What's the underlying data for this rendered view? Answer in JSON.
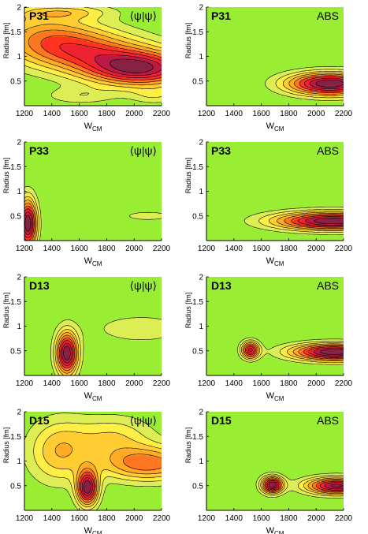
{
  "chart_data": [
    {
      "type": "contour",
      "panel_label": "P31",
      "quantity_label": "⟨ψ|ψ⟩",
      "xlabel": "W",
      "xlabel_sub": "CM",
      "ylabel": "Radius [fm]",
      "xlim": [
        1200,
        2200
      ],
      "ylim": [
        0,
        2
      ],
      "xticks": [
        1200,
        1400,
        1600,
        1800,
        2000,
        2200
      ],
      "yticks": [
        0.5,
        1,
        1.5,
        2
      ],
      "peaks": [
        {
          "x": 1350,
          "y": 1.45,
          "sx": 280,
          "sy": 0.35,
          "a": 0.45
        },
        {
          "x": 1650,
          "y": 1.1,
          "sx": 330,
          "sy": 0.3,
          "a": 0.6
        },
        {
          "x": 2050,
          "y": 0.75,
          "sx": 280,
          "sy": 0.25,
          "a": 1.0
        },
        {
          "x": 1600,
          "y": 0.2,
          "sx": 180,
          "sy": 0.12,
          "a": 0.2
        },
        {
          "x": 2150,
          "y": 0.2,
          "sx": 120,
          "sy": 0.12,
          "a": 0.18
        },
        {
          "x": 1480,
          "y": 1.9,
          "sx": 250,
          "sy": 0.1,
          "a": 0.3
        }
      ]
    },
    {
      "type": "contour",
      "panel_label": "P31",
      "quantity_label": "ABS",
      "xlabel": "W",
      "xlabel_sub": "CM",
      "ylabel": "Radius [fm]",
      "xlim": [
        1200,
        2200
      ],
      "ylim": [
        0,
        2
      ],
      "xticks": [
        1200,
        1400,
        1600,
        1800,
        2000,
        2200
      ],
      "yticks": [
        0.5,
        1,
        1.5,
        2
      ],
      "peaks": [
        {
          "x": 2100,
          "y": 0.45,
          "sx": 220,
          "sy": 0.16,
          "a": 1.0
        }
      ]
    },
    {
      "type": "contour",
      "panel_label": "P33",
      "quantity_label": "⟨ψ|ψ⟩",
      "xlabel": "W",
      "xlabel_sub": "CM",
      "ylabel": "Radius [fm]",
      "xlim": [
        1200,
        2200
      ],
      "ylim": [
        0,
        2
      ],
      "xticks": [
        1200,
        1400,
        1600,
        1800,
        2000,
        2200
      ],
      "yticks": [
        0.5,
        1,
        1.5,
        2
      ],
      "peaks": [
        {
          "x": 1225,
          "y": 0.35,
          "sx": 45,
          "sy": 0.35,
          "a": 1.0
        },
        {
          "x": 2100,
          "y": 0.5,
          "sx": 150,
          "sy": 0.08,
          "a": 0.15
        }
      ]
    },
    {
      "type": "contour",
      "panel_label": "P33",
      "quantity_label": "ABS",
      "xlabel": "W",
      "xlabel_sub": "CM",
      "ylabel": "Radius [fm]",
      "xlim": [
        1200,
        2200
      ],
      "ylim": [
        0,
        2
      ],
      "xticks": [
        1200,
        1400,
        1600,
        1800,
        2000,
        2200
      ],
      "yticks": [
        0.5,
        1,
        1.5,
        2
      ],
      "peaks": [
        {
          "x": 2120,
          "y": 0.4,
          "sx": 300,
          "sy": 0.13,
          "a": 1.0
        }
      ]
    },
    {
      "type": "contour",
      "panel_label": "D13",
      "quantity_label": "⟨ψ|ψ⟩",
      "xlabel": "W",
      "xlabel_sub": "CM",
      "ylabel": "Radius [fm]",
      "xlim": [
        1200,
        2200
      ],
      "ylim": [
        0,
        2
      ],
      "xticks": [
        1200,
        1400,
        1600,
        1800,
        2000,
        2200
      ],
      "yticks": [
        0.5,
        1,
        1.5,
        2
      ],
      "peaks": [
        {
          "x": 1510,
          "y": 0.45,
          "sx": 55,
          "sy": 0.3,
          "a": 1.0
        },
        {
          "x": 2050,
          "y": 0.95,
          "sx": 300,
          "sy": 0.25,
          "a": 0.15
        }
      ]
    },
    {
      "type": "contour",
      "panel_label": "D13",
      "quantity_label": "ABS",
      "xlabel": "W",
      "xlabel_sub": "CM",
      "ylabel": "Radius [fm]",
      "xlim": [
        1200,
        2200
      ],
      "ylim": [
        0,
        2
      ],
      "xticks": [
        1200,
        1400,
        1600,
        1800,
        2000,
        2200
      ],
      "yticks": [
        0.5,
        1,
        1.5,
        2
      ],
      "peaks": [
        {
          "x": 1520,
          "y": 0.52,
          "sx": 45,
          "sy": 0.12,
          "a": 0.7
        },
        {
          "x": 2130,
          "y": 0.48,
          "sx": 220,
          "sy": 0.12,
          "a": 0.85
        }
      ]
    },
    {
      "type": "contour",
      "panel_label": "D15",
      "quantity_label": "⟨ψ|ψ⟩",
      "xlabel": "W",
      "xlabel_sub": "CM",
      "ylabel": "Radius [fm]",
      "xlim": [
        1200,
        2200
      ],
      "ylim": [
        0,
        2
      ],
      "xticks": [
        1200,
        1400,
        1600,
        1800,
        2000,
        2200
      ],
      "yticks": [
        0.5,
        1,
        1.5,
        2
      ],
      "peaks": [
        {
          "x": 1660,
          "y": 0.45,
          "sx": 55,
          "sy": 0.25,
          "a": 1.0
        },
        {
          "x": 1450,
          "y": 1.2,
          "sx": 160,
          "sy": 0.45,
          "a": 0.4
        },
        {
          "x": 2100,
          "y": 0.95,
          "sx": 250,
          "sy": 0.25,
          "a": 0.6
        },
        {
          "x": 1850,
          "y": 1.5,
          "sx": 200,
          "sy": 0.3,
          "a": 0.3
        }
      ]
    },
    {
      "type": "contour",
      "panel_label": "D15",
      "quantity_label": "ABS",
      "xlabel": "W",
      "xlabel_sub": "CM",
      "ylabel": "Radius [fm]",
      "xlim": [
        1200,
        2200
      ],
      "ylim": [
        0,
        2
      ],
      "xticks": [
        1200,
        1400,
        1600,
        1800,
        2000,
        2200
      ],
      "yticks": [
        0.5,
        1,
        1.5,
        2
      ],
      "peaks": [
        {
          "x": 1680,
          "y": 0.52,
          "sx": 55,
          "sy": 0.12,
          "a": 0.85
        },
        {
          "x": 2150,
          "y": 0.5,
          "sx": 160,
          "sy": 0.12,
          "a": 0.8
        }
      ]
    }
  ],
  "colors": {
    "background": "#99ee33",
    "levels": [
      "#ddee55",
      "#ffee44",
      "#ffcc33",
      "#ffaa22",
      "#ff7722",
      "#ff3322",
      "#ee2233",
      "#bb1a44",
      "#882244"
    ],
    "contour_line": "#000000"
  }
}
